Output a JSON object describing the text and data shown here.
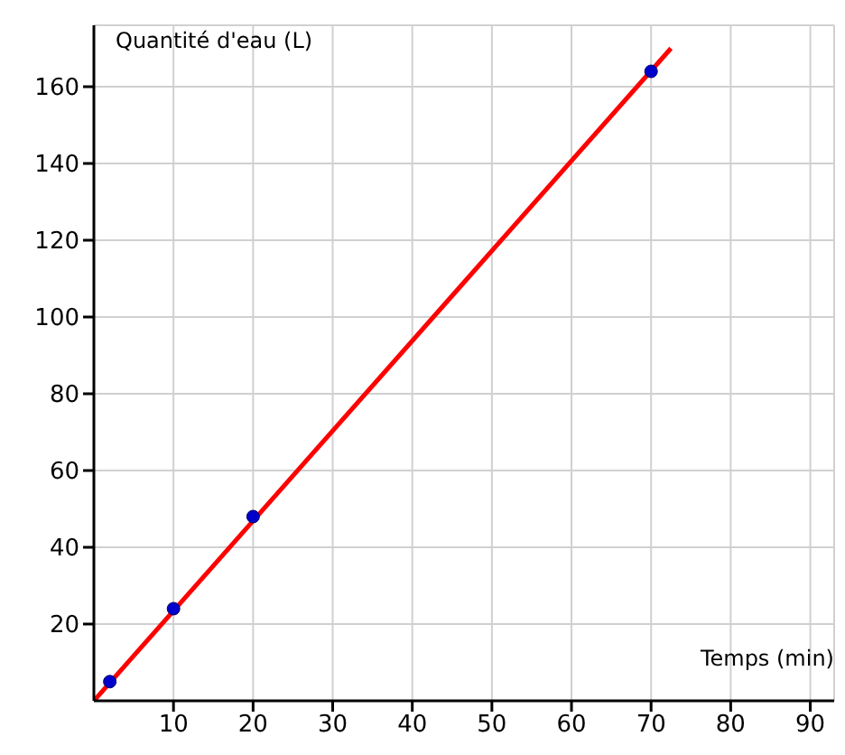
{
  "chart_data": {
    "type": "scatter",
    "xlabel": "Temps (min)",
    "ylabel": "Quantité d'eau (L)",
    "series": [
      {
        "type": "line",
        "color": "#ff0000",
        "x": [
          0,
          72.5
        ],
        "values": [
          0,
          170
        ],
        "marker": "none"
      },
      {
        "color": "#0000cc",
        "x": [
          2,
          10,
          20,
          70
        ],
        "values": [
          5,
          24,
          48,
          164
        ],
        "marker": "circle"
      }
    ],
    "xlim": [
      0,
      93
    ],
    "ylim": [
      0,
      176
    ],
    "xticks": [
      10,
      20,
      30,
      40,
      50,
      60,
      70,
      80,
      90
    ],
    "yticks": [
      20,
      40,
      60,
      80,
      100,
      120,
      140,
      160
    ],
    "grid": true
  }
}
